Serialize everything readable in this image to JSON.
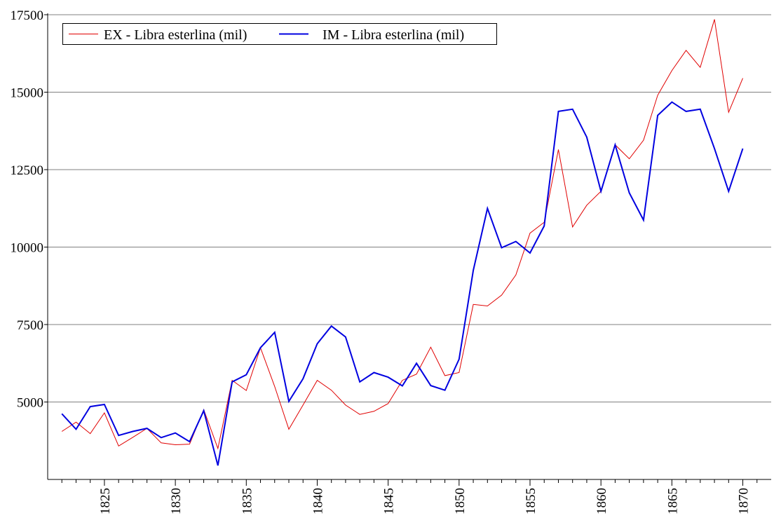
{
  "chart_data": {
    "type": "line",
    "title": "",
    "xlabel": "",
    "ylabel": "",
    "xlim": [
      1821,
      1872
    ],
    "ylim": [
      2500,
      17500
    ],
    "grid": "horizontal",
    "legend_position": "top-left",
    "x_ticks": [
      1825,
      1830,
      1835,
      1840,
      1845,
      1850,
      1855,
      1860,
      1865,
      1870
    ],
    "x_tick_labels": [
      "1825",
      "1830",
      "1835",
      "1840",
      "1845",
      "1850",
      "1855",
      "1860",
      "1865",
      "1870"
    ],
    "y_ticks": [
      5000,
      7500,
      10000,
      12500,
      15000,
      17500
    ],
    "y_tick_labels": [
      "5000",
      "7500",
      "10000",
      "12500",
      "15000",
      "17500"
    ],
    "x": [
      1822,
      1823,
      1824,
      1825,
      1826,
      1827,
      1828,
      1829,
      1830,
      1831,
      1832,
      1833,
      1834,
      1835,
      1836,
      1837,
      1838,
      1839,
      1840,
      1841,
      1842,
      1843,
      1844,
      1845,
      1846,
      1847,
      1848,
      1849,
      1850,
      1851,
      1852,
      1853,
      1854,
      1855,
      1856,
      1857,
      1858,
      1859,
      1860,
      1861,
      1862,
      1863,
      1864,
      1865,
      1866,
      1867,
      1868,
      1869,
      1870
    ],
    "series": [
      {
        "name": "EX - Libra esterlina (mil)",
        "color": "#e00000",
        "values": [
          4050,
          4350,
          3980,
          4650,
          3580,
          3860,
          4150,
          3680,
          3620,
          3640,
          4750,
          3500,
          5700,
          5370,
          6750,
          5500,
          4120,
          4900,
          5700,
          5380,
          4900,
          4600,
          4700,
          4950,
          5700,
          5900,
          6770,
          5850,
          5950,
          8150,
          8100,
          8450,
          9100,
          10450,
          10800,
          13150,
          10650,
          11350,
          11800,
          13300,
          12850,
          13450,
          14900,
          15700,
          16350,
          15800,
          17350,
          14350,
          15450
        ]
      },
      {
        "name": "IM - Libra esterlina (mil)",
        "color": "#0000e0",
        "values": [
          4620,
          4120,
          4850,
          4920,
          3920,
          4050,
          4150,
          3850,
          4000,
          3720,
          4720,
          2950,
          5650,
          5880,
          6750,
          7250,
          5020,
          5750,
          6880,
          7450,
          7100,
          5650,
          5950,
          5800,
          5520,
          6250,
          5530,
          5380,
          6380,
          9250,
          11250,
          9980,
          10180,
          9810,
          10680,
          14380,
          14450,
          13550,
          11800,
          13300,
          11750,
          10870,
          14250,
          14680,
          14380,
          14450,
          13180,
          11800,
          13180
        ]
      }
    ]
  }
}
